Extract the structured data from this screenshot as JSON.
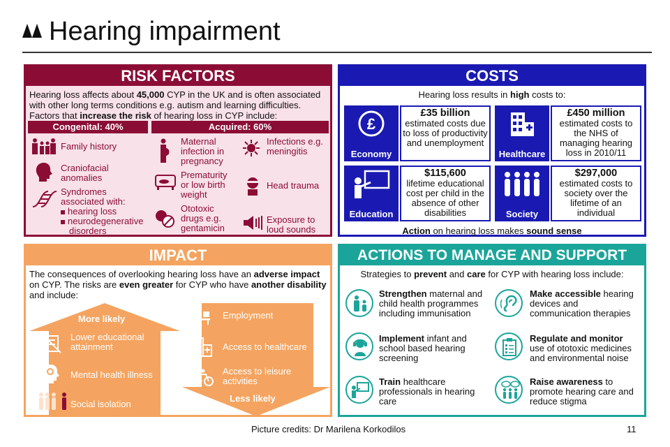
{
  "header": {
    "title": "Hearing impairment"
  },
  "risk": {
    "title": "RISK FACTORS",
    "intro": {
      "p1": "Hearing loss affects about ",
      "b1": "45,000",
      "p2": " CYP in the UK and is often associated with other long terms conditions e.g. autism and learning difficulties. Factors that ",
      "b2": "increase the risk",
      "p3": " of hearing loss in CYP include:"
    },
    "congenital_header": "Congenital: 40%",
    "acquired_header": "Acquired: 60%",
    "congenital": {
      "family": "Family history",
      "cranio_1": "Craniofacial",
      "cranio_2": "anomalies",
      "syn_1": "Syndromes",
      "syn_2": "associated with:",
      "syn_b1": "hearing loss",
      "syn_b2a": "neurodegenerative",
      "syn_b2b": "disorders"
    },
    "acquired": {
      "mat_1": "Maternal",
      "mat_2": "infection in",
      "mat_3": "pregnancy",
      "inf_1": "Infections e.g.",
      "inf_2": "meningitis",
      "pre_1": "Prematurity",
      "pre_2": "or low birth",
      "pre_3": "weight",
      "head": "Head trauma",
      "oto_1": "Ototoxic",
      "oto_2": "drugs e.g.",
      "oto_3": "gentamicin",
      "exp_1": "Exposure to",
      "exp_2": "loud sounds"
    }
  },
  "costs": {
    "title": "COSTS",
    "intro_a": "Hearing loss results in ",
    "intro_b": "high",
    "intro_c": " costs to:",
    "economy": {
      "label": "Economy",
      "amount": "£35 billion",
      "l1": "estimated costs due",
      "l2": "to loss of productivity",
      "l3": "and unemployment"
    },
    "healthcare": {
      "label": "Healthcare",
      "amount": "£450 million",
      "l1": "estimated costs to",
      "l2": "the NHS of",
      "l3": "managing hearing",
      "l4": "loss in 2010/11"
    },
    "education": {
      "label": "Education",
      "amount": "$115,600",
      "l1": "lifetime educational",
      "l2": "cost per child in the",
      "l3": "absence of other",
      "l4": "disabilities"
    },
    "society": {
      "label": "Society",
      "amount": "$297,000",
      "l1": "estimated costs to",
      "l2": "society over the",
      "l3": "lifetime of an",
      "l4": "individual"
    },
    "footer_a": "Action",
    "footer_b": " on hearing loss makes ",
    "footer_c": "sound sense"
  },
  "impact": {
    "title": "IMPACT",
    "intro": {
      "p1": "The consequences of overlooking hearing loss have an ",
      "b1": "adverse impact",
      "p2": " on CYP. The risks are ",
      "b2": "even greater",
      "p3": " for CYP who have ",
      "b3": "another disability",
      "p4": " and include:"
    },
    "more_likely": "More likely",
    "less_likely": "Less likely",
    "lower_1": "Lower educational",
    "lower_2": "attainment",
    "mental": "Mental health illness",
    "social": "Social isolation",
    "employment": "Employment",
    "healthcare_access": "Access to healthcare",
    "leisure_1": "Access to leisure",
    "leisure_2": "activities"
  },
  "actions": {
    "title": "ACTIONS TO MANAGE AND SUPPORT",
    "intro_a": "Strategies to ",
    "intro_b": "prevent",
    "intro_c": " and ",
    "intro_d": "care",
    "intro_e": " for CYP with hearing loss include:",
    "strengthen": {
      "b": "Strengthen",
      "t1": " maternal and",
      "t2": "child health programmes",
      "t3": "including immunisation"
    },
    "accessible": {
      "b": "Make accessible",
      "t1": " hearing",
      "t2": "devices and",
      "t3": "communication therapies"
    },
    "implement": {
      "b": "Implement",
      "t1": " infant and",
      "t2": "school based hearing",
      "t3": "screening"
    },
    "regulate": {
      "b": "Regulate and monitor",
      "t2": "use of ototoxic medicines",
      "t3": "and environmental noise"
    },
    "train": {
      "b": "Train",
      "t1": " healthcare",
      "t2": "professionals in hearing",
      "t3": "care"
    },
    "raise": {
      "b": "Raise awareness",
      "t1": " to",
      "t2": "promote hearing care and",
      "t3": "reduce stigma"
    }
  },
  "footer": {
    "credits": "Picture credits: Dr Marilena Korkodilos",
    "page": "11"
  },
  "colors": {
    "risk": "#8b0d35",
    "risk_bg": "#f9e1ea",
    "costs": "#1a1ab3",
    "impact": "#f4a460",
    "actions": "#1ba59a"
  }
}
